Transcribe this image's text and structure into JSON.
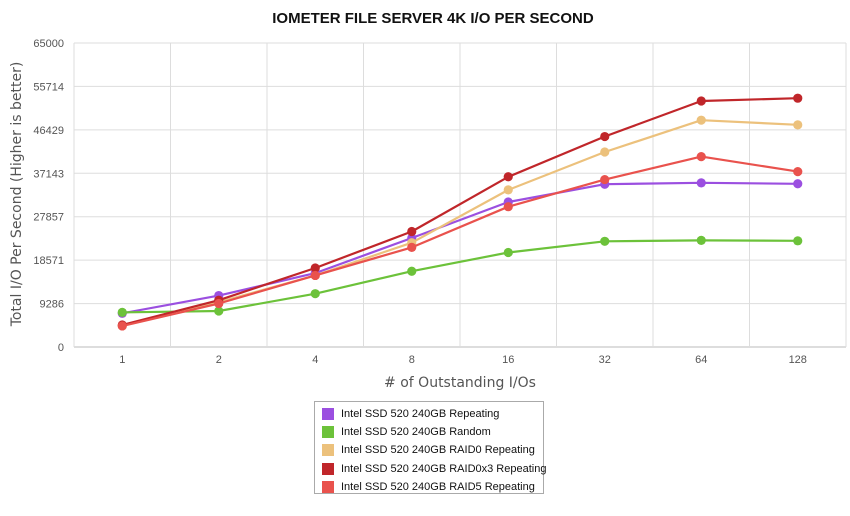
{
  "chart_data": {
    "type": "line",
    "title": "IOMETER FILE SERVER 4K I/O PER SECOND",
    "xlabel": "# of Outstanding I/Os",
    "ylabel": "Total I/O Per Second (Higher is better)",
    "categories": [
      "1",
      "2",
      "4",
      "8",
      "16",
      "32",
      "64",
      "128"
    ],
    "y_ticks": [
      "0",
      "9286",
      "18571",
      "27857",
      "37143",
      "46429",
      "55714",
      "65000"
    ],
    "ylim": [
      0,
      65000
    ],
    "grid": true,
    "legend_position": "bottom",
    "series": [
      {
        "name": "Intel SSD 520 240GB Repeating",
        "color": "#9b4fe0",
        "values": [
          7200,
          11000,
          15800,
          23300,
          31000,
          34800,
          35100,
          34900
        ]
      },
      {
        "name": "Intel SSD 520 240GB Random",
        "color": "#6cc23a",
        "values": [
          7400,
          7700,
          11400,
          16200,
          20200,
          22600,
          22800,
          22700
        ]
      },
      {
        "name": "Intel SSD 520 240GB RAID0 Repeating",
        "color": "#ecc17c",
        "values": [
          4600,
          9600,
          15300,
          22300,
          33600,
          41700,
          48500,
          47500
        ]
      },
      {
        "name": "Intel SSD 520 240GB RAID0x3 Repeating",
        "color": "#c0262a",
        "values": [
          4700,
          10000,
          16900,
          24700,
          36400,
          45000,
          52600,
          53200
        ]
      },
      {
        "name": "Intel SSD 520 240GB RAID5 Repeating",
        "color": "#e9524d",
        "values": [
          4500,
          9300,
          15300,
          21300,
          30000,
          35800,
          40700,
          37500
        ]
      }
    ]
  }
}
